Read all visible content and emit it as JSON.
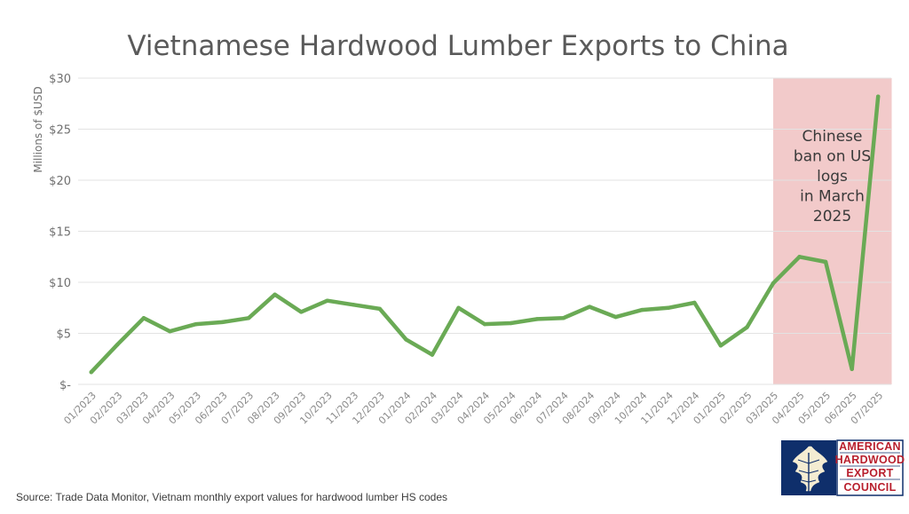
{
  "source_note": "Source: Trade Data Monitor, Vietnam monthly export values for hardwood lumber HS codes",
  "logo": {
    "lines": [
      "AMERICAN",
      "HARDWOOD",
      "EXPORT",
      "COUNCIL"
    ],
    "icon": "oak-leaf-icon",
    "colors": {
      "navy": "#0f2f6b",
      "red": "#b81f2d"
    }
  },
  "chart_data": {
    "type": "line",
    "title": "Vietnamese Hardwood Lumber Exports to China",
    "ylabel": "Millions of $USD",
    "xlabel": "",
    "ylim": [
      0,
      30
    ],
    "yticks": [
      {
        "value": 0,
        "label": "$-"
      },
      {
        "value": 5,
        "label": "$5"
      },
      {
        "value": 10,
        "label": "$10"
      },
      {
        "value": 15,
        "label": "$15"
      },
      {
        "value": 20,
        "label": "$20"
      },
      {
        "value": 25,
        "label": "$25"
      },
      {
        "value": 30,
        "label": "$30"
      }
    ],
    "grid": true,
    "categories": [
      "01/2023",
      "02/2023",
      "03/2023",
      "04/2023",
      "05/2023",
      "06/2023",
      "07/2023",
      "08/2023",
      "09/2023",
      "10/2023",
      "11/2023",
      "12/2023",
      "01/2024",
      "02/2024",
      "03/2024",
      "04/2024",
      "05/2024",
      "06/2024",
      "07/2024",
      "08/2024",
      "09/2024",
      "10/2024",
      "11/2024",
      "12/2024",
      "01/2025",
      "02/2025",
      "03/2025",
      "04/2025",
      "05/2025",
      "06/2025",
      "07/2025"
    ],
    "series": [
      {
        "values": [
          1.2,
          3.9,
          6.5,
          5.2,
          5.9,
          6.1,
          6.5,
          8.8,
          7.1,
          8.2,
          7.8,
          7.4,
          4.4,
          2.9,
          7.5,
          5.9,
          6.0,
          6.4,
          6.5,
          7.6,
          6.6,
          7.3,
          7.5,
          8.0,
          3.8,
          5.6,
          9.9,
          12.5,
          12.0,
          1.5,
          28.2
        ],
        "color": "#6aaa55"
      }
    ],
    "highlight": {
      "from": "03/2025",
      "to": "07/2025",
      "color": "#f2caca",
      "label_lines": [
        "Chinese",
        "ban on US",
        "logs",
        "in March",
        "2025"
      ]
    }
  }
}
